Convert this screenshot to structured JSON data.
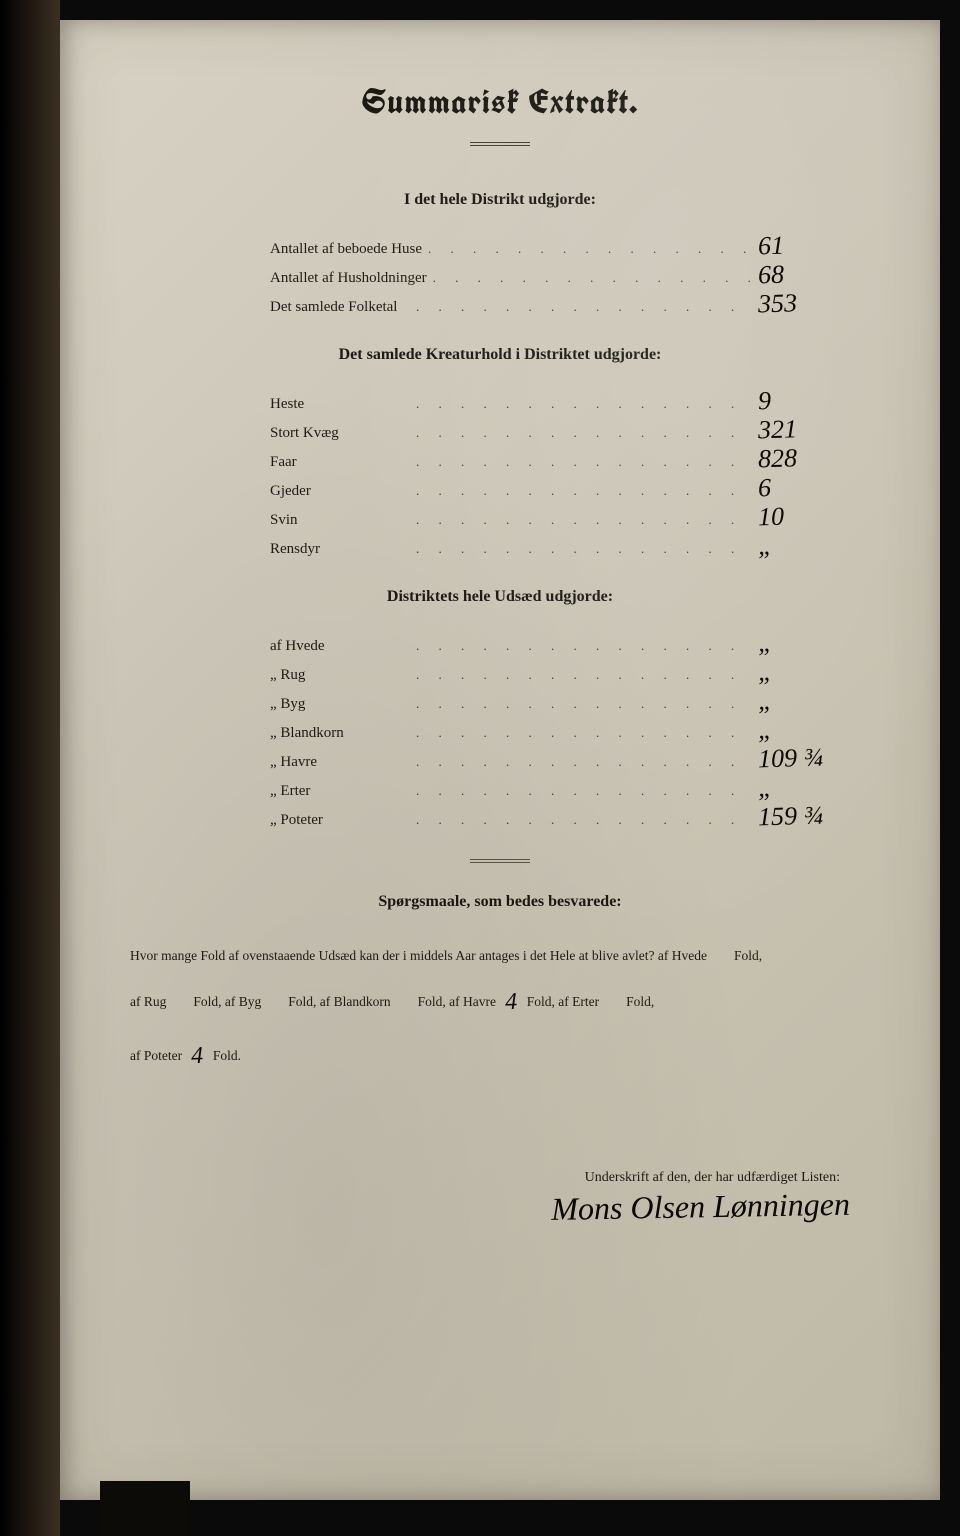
{
  "colors": {
    "page_bg": "#cec8ba",
    "ink": "#1a1812",
    "hand_ink": "#0a0804",
    "backdrop": "#0a0a0a"
  },
  "title": "Summarisk Extrakt.",
  "section1": {
    "heading": "I det hele Distrikt udgjorde:",
    "rows": [
      {
        "label": "Antallet af beboede Huse",
        "value": "61"
      },
      {
        "label": "Antallet af Husholdninger",
        "value": "68"
      },
      {
        "label": "Det samlede Folketal",
        "value": "353"
      }
    ]
  },
  "section2": {
    "heading": "Det samlede Kreaturhold i Distriktet udgjorde:",
    "rows": [
      {
        "label": "Heste",
        "value": "9"
      },
      {
        "label": "Stort Kvæg",
        "value": "321"
      },
      {
        "label": "Faar",
        "value": "828"
      },
      {
        "label": "Gjeder",
        "value": "6"
      },
      {
        "label": "Svin",
        "value": "10"
      },
      {
        "label": "Rensdyr",
        "value": "„"
      }
    ]
  },
  "section3": {
    "heading": "Distriktets hele Udsæd udgjorde:",
    "rows": [
      {
        "label": "af Hvede",
        "value": "„"
      },
      {
        "label": "„ Rug",
        "value": "„"
      },
      {
        "label": "„ Byg",
        "value": "„"
      },
      {
        "label": "„ Blandkorn",
        "value": "„"
      },
      {
        "label": "„ Havre",
        "value": "109 ¾"
      },
      {
        "label": "„ Erter",
        "value": "„"
      },
      {
        "label": "„ Poteter",
        "value": "159 ¾"
      }
    ]
  },
  "questions": {
    "heading": "Spørgsmaale, som bedes besvarede:",
    "line1_pre": "Hvor mange Fold af ovenstaaende Udsæd kan der i middels Aar antages i det Hele at blive avlet?  af Hvede",
    "line1_suf": "Fold,",
    "line2_a": "af Rug",
    "line2_b": "Fold, af Byg",
    "line2_c": "Fold, af Blandkorn",
    "line2_d": "Fold, af Havre",
    "havre_fold": "4",
    "line2_e": "Fold, af Erter",
    "line2_f": "Fold,",
    "line3_a": "af Poteter",
    "poteter_fold": "4",
    "line3_b": "Fold."
  },
  "sig_heading": "Underskrift af den, der har udfærdiget Listen:",
  "signature": "Mons Olsen Lønningen"
}
